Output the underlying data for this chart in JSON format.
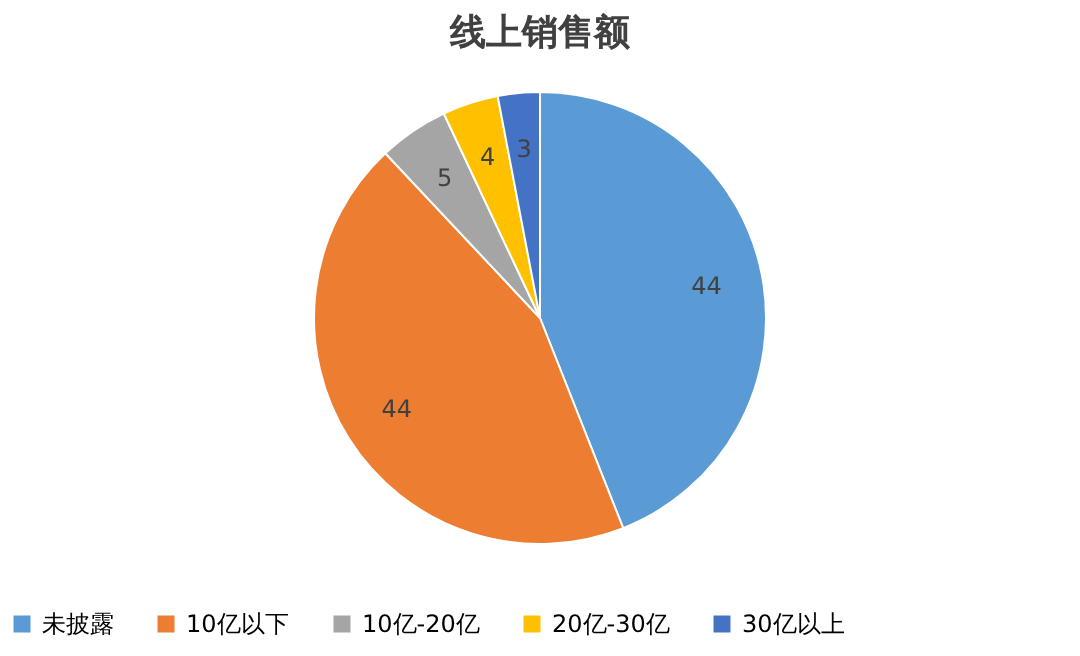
{
  "chart_data": {
    "type": "pie",
    "title": "线上销售额",
    "categories": [
      "未披露",
      "10亿以下",
      "10亿-20亿",
      "20亿-30亿",
      "30亿以上"
    ],
    "values": [
      44,
      44,
      5,
      4,
      3
    ],
    "colors": [
      "#5b9bd5",
      "#ed7d31",
      "#a5a5a5",
      "#ffc000",
      "#4472c4"
    ],
    "data_labels": true,
    "legend": "bottom"
  }
}
